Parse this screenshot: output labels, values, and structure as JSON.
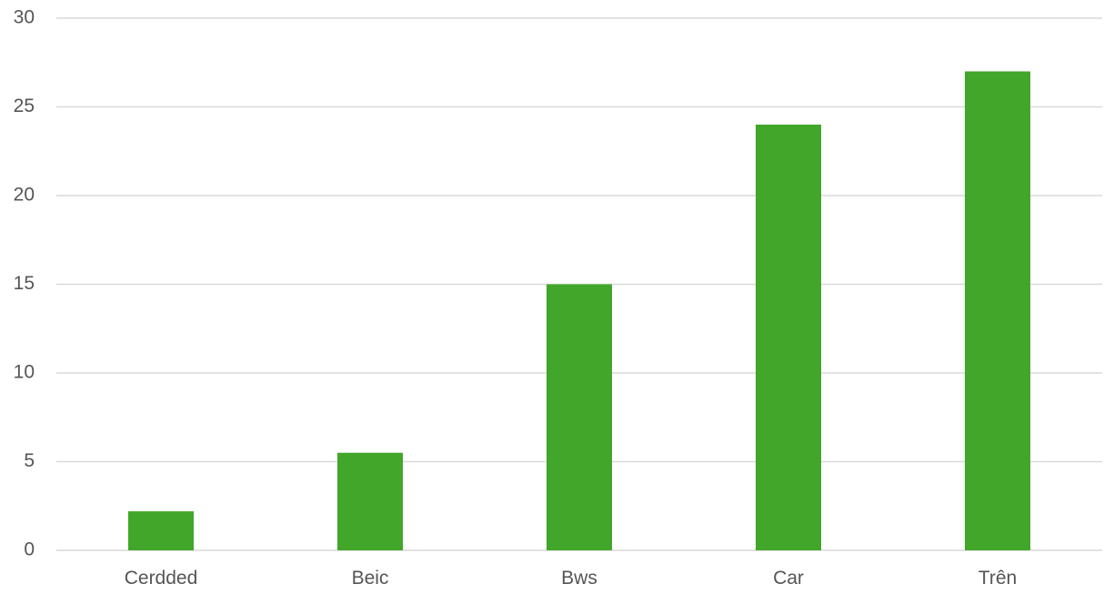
{
  "chart_data": {
    "type": "bar",
    "title": "",
    "xlabel": "",
    "ylabel": "",
    "categories": [
      "Cerdded",
      "Beic",
      "Bws",
      "Car",
      "Trên"
    ],
    "values": [
      2.2,
      5.5,
      15,
      24,
      27
    ],
    "ylim": [
      0,
      30
    ],
    "yticks": [
      0,
      5,
      10,
      15,
      20,
      25,
      30
    ],
    "ytick_labels": [
      "0",
      "5",
      "10",
      "15",
      "20",
      "25",
      "30"
    ],
    "grid": true,
    "legend": "none",
    "bar_color": "#41a62a",
    "grid_color": "#d9d9d9",
    "label_color": "#555555"
  }
}
